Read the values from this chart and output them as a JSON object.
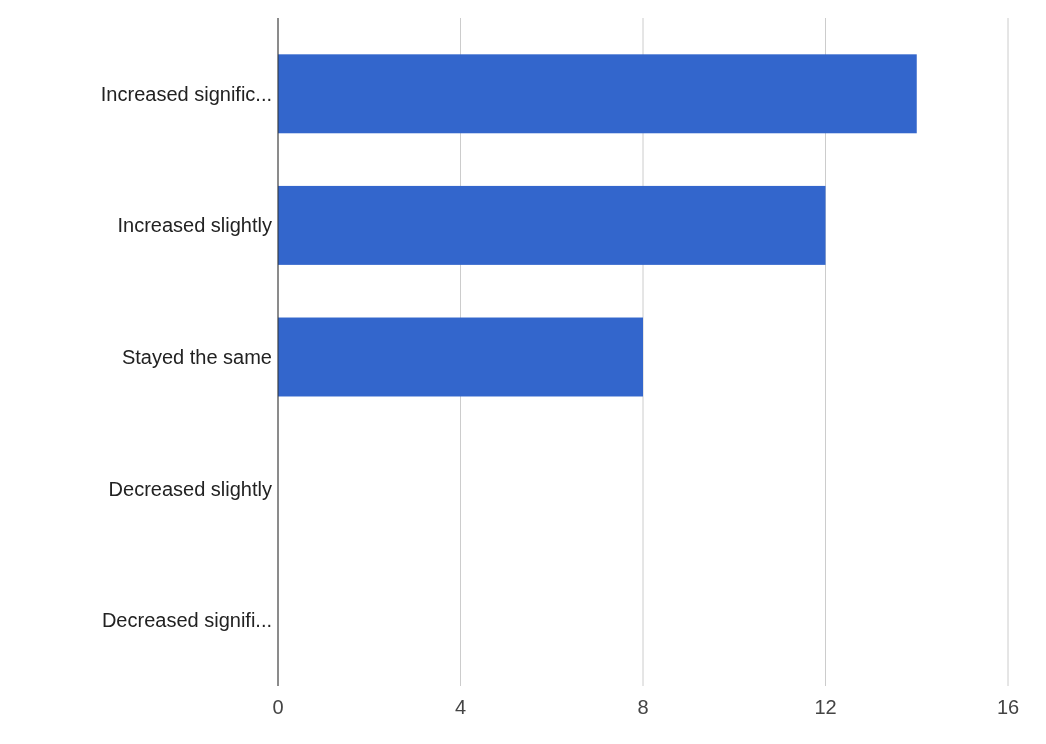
{
  "chart_data": {
    "type": "bar",
    "orientation": "horizontal",
    "categories": [
      "Increased signific...",
      "Increased slightly",
      "Stayed the same",
      "Decreased slightly",
      "Decreased signifi..."
    ],
    "values": [
      14,
      12,
      8,
      0,
      0
    ],
    "color": "#3366cc",
    "xlim": [
      0,
      16
    ],
    "xticks": [
      0,
      4,
      8,
      12,
      16
    ],
    "grid": "x"
  }
}
